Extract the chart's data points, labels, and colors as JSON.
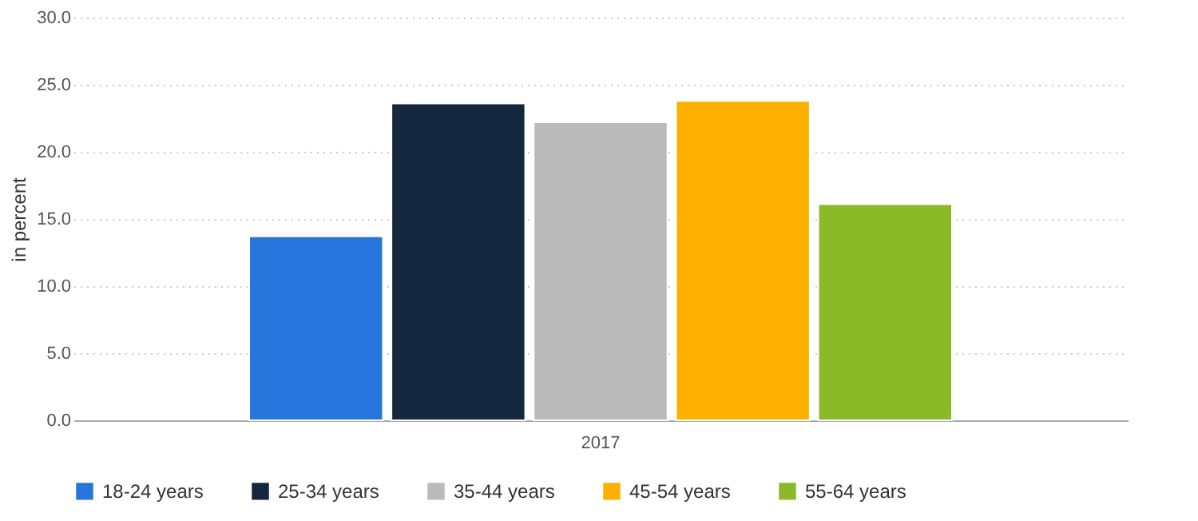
{
  "chart_data": {
    "type": "bar",
    "ylabel": "in percent",
    "categories": [
      "2017"
    ],
    "series": [
      {
        "name": "18-24 years",
        "color": "#2876dd",
        "values": [
          13.7
        ]
      },
      {
        "name": "25-34 years",
        "color": "#14273e",
        "values": [
          23.6
        ]
      },
      {
        "name": "35-44 years",
        "color": "#bababa",
        "values": [
          22.2
        ]
      },
      {
        "name": "45-54 years",
        "color": "#feb000",
        "values": [
          23.8
        ]
      },
      {
        "name": "55-64 years",
        "color": "#8aba27",
        "values": [
          16.1
        ]
      }
    ],
    "ylim": [
      0,
      30
    ],
    "yticks": [
      {
        "value": 0,
        "label": "0.0"
      },
      {
        "value": 5,
        "label": "5.0"
      },
      {
        "value": 10,
        "label": "10.0"
      },
      {
        "value": 15,
        "label": "15.0"
      },
      {
        "value": 20,
        "label": "20.0"
      },
      {
        "value": 25,
        "label": "25.0"
      },
      {
        "value": 30,
        "label": "30.0"
      }
    ],
    "grid": "y",
    "legend": "bottom"
  }
}
